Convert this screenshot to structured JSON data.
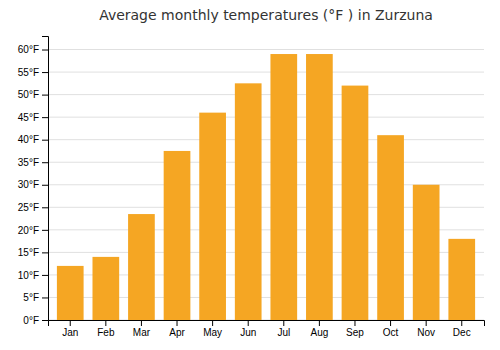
{
  "chart_data": {
    "type": "bar",
    "title": "Average monthly temperatures (°F ) in Zurzuna",
    "categories": [
      "Jan",
      "Feb",
      "Mar",
      "Apr",
      "May",
      "Jun",
      "Jul",
      "Aug",
      "Sep",
      "Oct",
      "Nov",
      "Dec"
    ],
    "values": [
      12,
      14,
      23.5,
      37.5,
      46,
      52.5,
      59,
      59,
      52,
      41,
      30,
      18
    ],
    "color": "#F5A623",
    "ylim": [
      0,
      63
    ],
    "yticks": [
      {
        "value": 0,
        "label": "0°F"
      },
      {
        "value": 5,
        "label": "5°F"
      },
      {
        "value": 10,
        "label": "10°F"
      },
      {
        "value": 15,
        "label": "15°F"
      },
      {
        "value": 20,
        "label": "20°F"
      },
      {
        "value": 25,
        "label": "25°F"
      },
      {
        "value": 30,
        "label": "30°F"
      },
      {
        "value": 35,
        "label": "35°F"
      },
      {
        "value": 40,
        "label": "40°F"
      },
      {
        "value": 45,
        "label": "45°F"
      },
      {
        "value": 50,
        "label": "50°F"
      },
      {
        "value": 55,
        "label": "55°F"
      },
      {
        "value": 60,
        "label": "60°F"
      }
    ],
    "grid": true
  }
}
